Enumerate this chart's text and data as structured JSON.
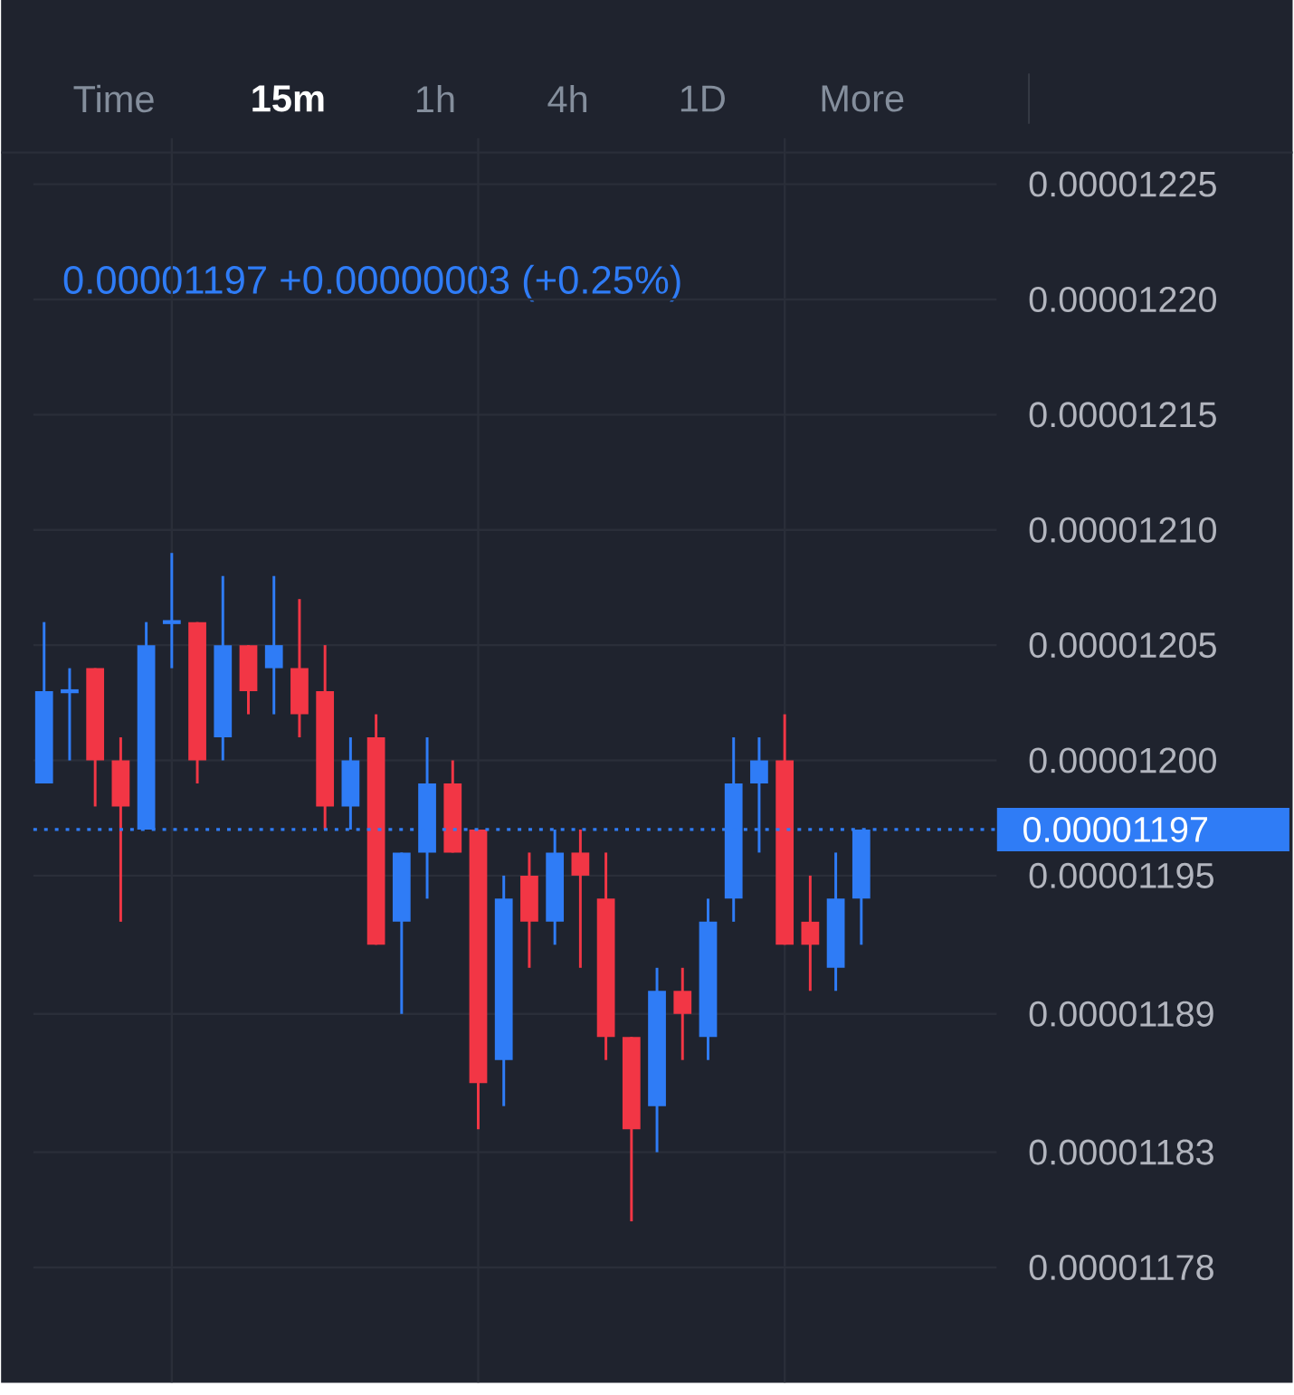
{
  "chart_data": {
    "type": "candlestick",
    "subtitle": "0.00001197  +0.00000003 (+0.25%)",
    "annotations": [
      "Time",
      "15m",
      "1h",
      "4h",
      "1D",
      "More"
    ],
    "categories": [
      null,
      null,
      null,
      null,
      null,
      null,
      null,
      null,
      null,
      null,
      null,
      null,
      null,
      null,
      null,
      null,
      null,
      null,
      null,
      null,
      null,
      null,
      null,
      null,
      null,
      null,
      null,
      null,
      null,
      null,
      null,
      null,
      null
    ],
    "ohlc": [
      [
        1.199e-05,
        1.206e-05,
        1.199e-05,
        1.203e-05
      ],
      [
        1.203e-05,
        1.204e-05,
        1.2e-05,
        1.203e-05
      ],
      [
        1.204e-05,
        1.204e-05,
        1.198e-05,
        1.2e-05
      ],
      [
        1.2e-05,
        1.201e-05,
        1.193e-05,
        1.198e-05
      ],
      [
        1.197e-05,
        1.206e-05,
        1.197e-05,
        1.205e-05
      ],
      [
        1.206e-05,
        1.209e-05,
        1.204e-05,
        1.206e-05
      ],
      [
        1.206e-05,
        1.206e-05,
        1.199e-05,
        1.2e-05
      ],
      [
        1.201e-05,
        1.208e-05,
        1.2e-05,
        1.205e-05
      ],
      [
        1.205e-05,
        1.205e-05,
        1.202e-05,
        1.203e-05
      ],
      [
        1.204e-05,
        1.208e-05,
        1.202e-05,
        1.205e-05
      ],
      [
        1.204e-05,
        1.207e-05,
        1.201e-05,
        1.202e-05
      ],
      [
        1.203e-05,
        1.205e-05,
        1.197e-05,
        1.198e-05
      ],
      [
        1.198e-05,
        1.201e-05,
        1.197e-05,
        1.2e-05
      ],
      [
        1.201e-05,
        1.202e-05,
        1.192e-05,
        1.192e-05
      ],
      [
        1.193e-05,
        1.196e-05,
        1.189e-05,
        1.196e-05
      ],
      [
        1.196e-05,
        1.201e-05,
        1.194e-05,
        1.199e-05
      ],
      [
        1.199e-05,
        1.2e-05,
        1.196e-05,
        1.196e-05
      ],
      [
        1.197e-05,
        1.197e-05,
        1.184e-05,
        1.186e-05
      ],
      [
        1.187e-05,
        1.195e-05,
        1.185e-05,
        1.194e-05
      ],
      [
        1.195e-05,
        1.196e-05,
        1.191e-05,
        1.193e-05
      ],
      [
        1.193e-05,
        1.197e-05,
        1.192e-05,
        1.196e-05
      ],
      [
        1.196e-05,
        1.197e-05,
        1.191e-05,
        1.195e-05
      ],
      [
        1.194e-05,
        1.196e-05,
        1.187e-05,
        1.188e-05
      ],
      [
        1.188e-05,
        1.188e-05,
        1.18e-05,
        1.184e-05
      ],
      [
        1.185e-05,
        1.191e-05,
        1.183e-05,
        1.19e-05
      ],
      [
        1.19e-05,
        1.191e-05,
        1.187e-05,
        1.189e-05
      ],
      [
        1.188e-05,
        1.194e-05,
        1.187e-05,
        1.193e-05
      ],
      [
        1.194e-05,
        1.201e-05,
        1.193e-05,
        1.199e-05
      ],
      [
        1.199e-05,
        1.201e-05,
        1.196e-05,
        1.2e-05
      ],
      [
        1.2e-05,
        1.202e-05,
        1.192e-05,
        1.192e-05
      ],
      [
        1.193e-05,
        1.195e-05,
        1.19e-05,
        1.192e-05
      ],
      [
        1.191e-05,
        1.196e-05,
        1.19e-05,
        1.194e-05
      ],
      [
        1.194e-05,
        1.197e-05,
        1.192e-05,
        1.197e-05
      ]
    ],
    "colors": [
      "#2f7cf6",
      "#2f7cf6",
      "#f23645",
      "#f23645",
      "#2f7cf6",
      "#2f7cf6",
      "#f23645",
      "#2f7cf6",
      "#f23645",
      "#2f7cf6",
      "#f23645",
      "#f23645",
      "#2f7cf6",
      "#f23645",
      "#2f7cf6",
      "#2f7cf6",
      "#f23645",
      "#f23645",
      "#2f7cf6",
      "#f23645",
      "#2f7cf6",
      "#f23645",
      "#f23645",
      "#f23645",
      "#2f7cf6",
      "#f23645",
      "#2f7cf6",
      "#2f7cf6",
      "#2f7cf6",
      "#f23645",
      "#f23645",
      "#2f7cf6",
      "#2f7cf6"
    ],
    "ylim": [
      1.173e-05,
      1.227e-05
    ],
    "yticks": [
      {
        "value": 1.178e-05,
        "label": "0.00001178"
      },
      {
        "value": 1.183e-05,
        "label": "0.00001183"
      },
      {
        "value": 1.189e-05,
        "label": "0.00001189"
      },
      {
        "value": 1.195e-05,
        "label": "0.00001195"
      },
      {
        "value": 1.2e-05,
        "label": "0.00001200"
      },
      {
        "value": 1.205e-05,
        "label": "0.00001205"
      },
      {
        "value": 1.21e-05,
        "label": "0.00001210"
      },
      {
        "value": 1.215e-05,
        "label": "0.00001215"
      },
      {
        "value": 1.22e-05,
        "label": "0.00001220"
      },
      {
        "value": 1.225e-05,
        "label": "0.00001225"
      }
    ],
    "ref_lines": [
      {
        "axis": "y",
        "value": 1.197e-05,
        "label": "0.00001197",
        "color": "#2f7cf6",
        "line_style": "dotted"
      }
    ],
    "grid": true,
    "tick_labels": "y"
  }
}
